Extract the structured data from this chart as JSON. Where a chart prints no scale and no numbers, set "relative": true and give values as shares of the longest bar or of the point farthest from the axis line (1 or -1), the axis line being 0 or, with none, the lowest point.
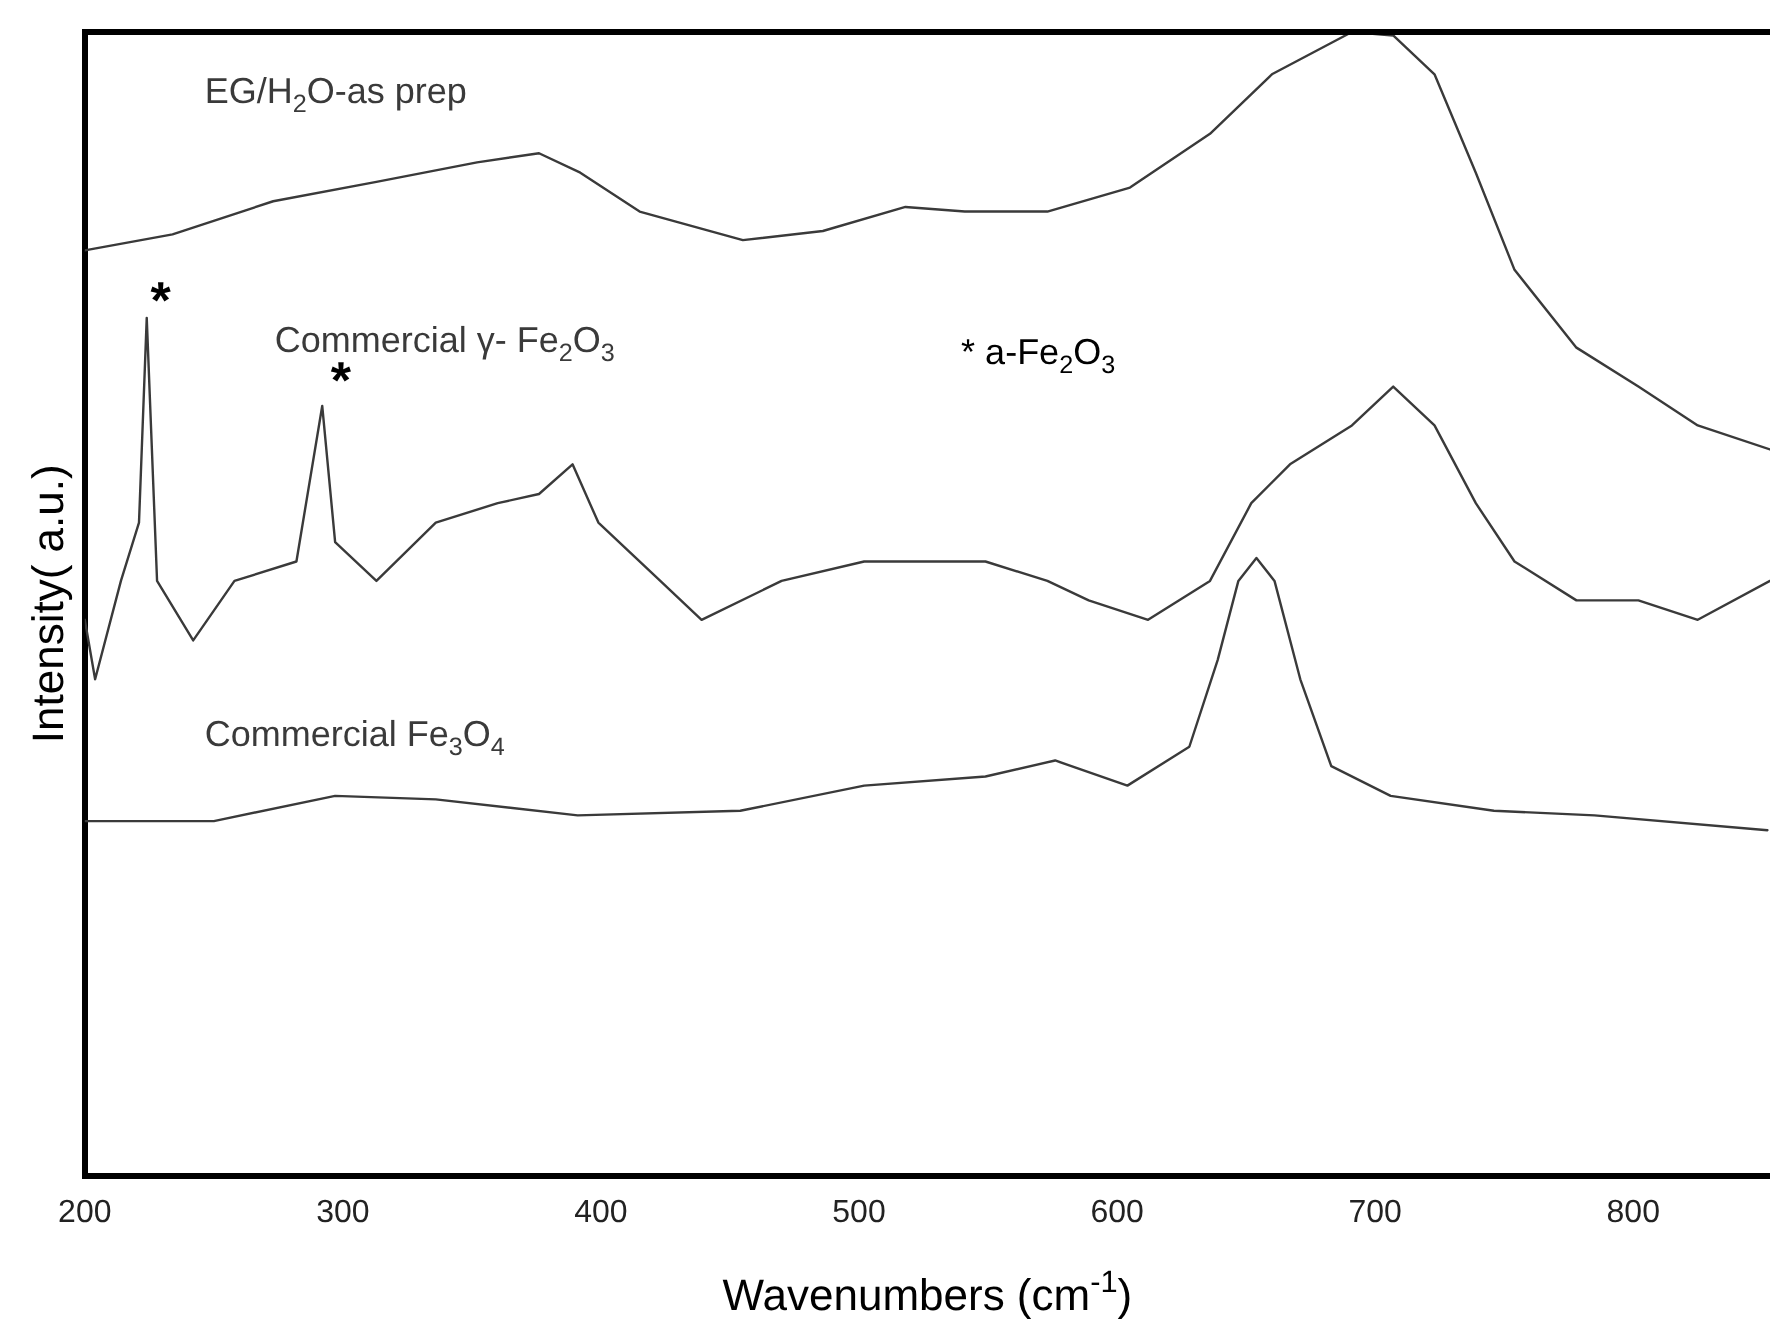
{
  "chart_data": {
    "type": "line",
    "relative": true,
    "xlabel": "Wavenumbers (cm$^{-1}$)",
    "ylabel": "Intensity( a.u.)",
    "xlim": [
      200,
      853
    ],
    "xticks": [
      200,
      300,
      400,
      500,
      600,
      700,
      800
    ],
    "grid": false,
    "legend": false,
    "marker": "none",
    "line_style": "solid",
    "annotations": [
      "*",
      "*",
      "* a-Fe$_{2}$O$_{3}$"
    ],
    "series": [
      {
        "name": "EG/H$_{2}$O-as prep",
        "color": "#3a3a3a",
        "x": [
          200,
          234,
          273,
          313,
          352,
          376,
          392,
          415,
          455,
          486,
          518,
          541,
          573,
          605,
          636,
          660,
          691,
          707,
          723,
          739,
          754,
          778,
          802,
          825,
          853
        ],
        "values": [
          0.809,
          0.823,
          0.852,
          0.869,
          0.886,
          0.894,
          0.877,
          0.843,
          0.818,
          0.826,
          0.847,
          0.843,
          0.843,
          0.864,
          0.911,
          0.963,
          1,
          0.997,
          0.963,
          0.877,
          0.792,
          0.724,
          0.69,
          0.656,
          0.635
        ]
      },
      {
        "name": "Commercial γ- Fe$_{2}$O$_{3}$",
        "color": "#3a3a3a",
        "x": [
          200,
          204,
          214,
          221,
          224,
          228,
          242,
          258,
          282,
          292,
          297,
          313,
          336,
          360,
          376,
          389,
          399,
          423,
          439,
          470,
          502,
          525,
          549,
          573,
          589,
          612,
          636,
          652,
          667,
          691,
          707,
          723,
          739,
          754,
          778,
          802,
          825,
          853
        ],
        "values": [
          0.486,
          0.434,
          0.52,
          0.571,
          0.75,
          0.52,
          0.468,
          0.52,
          0.537,
          0.673,
          0.554,
          0.52,
          0.571,
          0.588,
          0.596,
          0.622,
          0.571,
          0.52,
          0.486,
          0.52,
          0.537,
          0.537,
          0.537,
          0.52,
          0.503,
          0.486,
          0.52,
          0.588,
          0.622,
          0.656,
          0.69,
          0.656,
          0.588,
          0.537,
          0.503,
          0.503,
          0.486,
          0.52
        ]
      },
      {
        "name": "Commercial Fe$_{3}$O$_{4}$",
        "color": "#3a3a3a",
        "x": [
          200,
          250,
          297,
          336,
          391,
          454,
          502,
          549,
          576,
          604,
          628,
          639,
          647,
          654,
          661,
          671,
          683,
          706,
          746,
          785,
          852
        ],
        "values": [
          0.31,
          0.31,
          0.332,
          0.329,
          0.315,
          0.319,
          0.341,
          0.349,
          0.363,
          0.341,
          0.375,
          0.451,
          0.52,
          0.54,
          0.52,
          0.434,
          0.358,
          0.332,
          0.319,
          0.315,
          0.302
        ]
      }
    ]
  }
}
